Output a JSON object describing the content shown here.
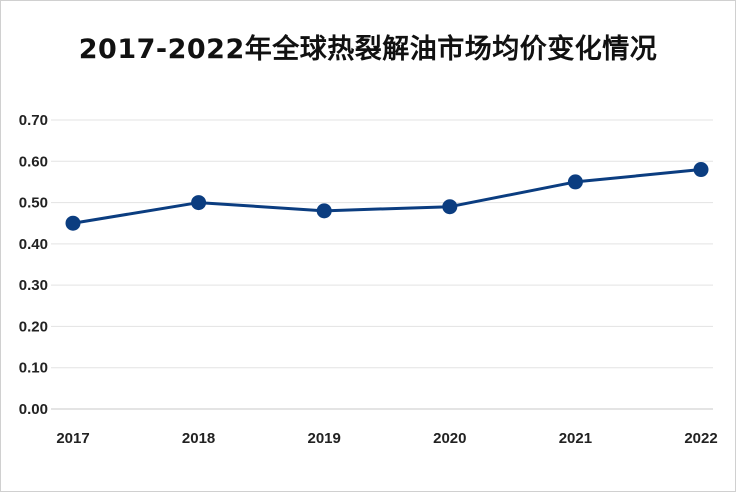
{
  "chart_data": {
    "type": "line",
    "title": "2017-2022年全球热裂解油市场均价变化情况",
    "xlabel": "",
    "ylabel": "",
    "categories": [
      "2017",
      "2018",
      "2019",
      "2020",
      "2021",
      "2022"
    ],
    "series": [
      {
        "values": [
          0.45,
          0.5,
          0.48,
          0.49,
          0.55,
          0.58
        ]
      }
    ],
    "ylim": [
      0,
      0.7
    ],
    "yticks": [
      "0.00",
      "0.10",
      "0.20",
      "0.30",
      "0.40",
      "0.50",
      "0.60",
      "0.70"
    ],
    "grid": true,
    "legend": "none",
    "line_color": "#0b3d80"
  }
}
